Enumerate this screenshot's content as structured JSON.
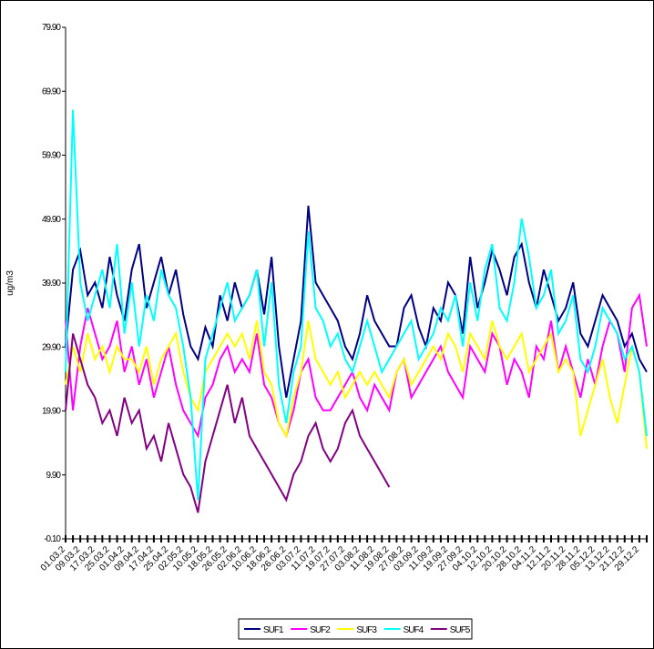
{
  "chart_data": {
    "type": "line",
    "y_label": "ug/m3",
    "categories": [
      "01.03.2",
      null,
      "09.03.2",
      null,
      "17.03.2",
      null,
      "25.03.2",
      null,
      "01.04.2",
      null,
      "09.04.2",
      null,
      "17.04.2",
      null,
      "25.04.2",
      null,
      "02.05.2",
      null,
      "10.05.2",
      null,
      "18.05.2",
      null,
      "26.05.2",
      null,
      "02.06.2",
      null,
      "10.06.2",
      null,
      "18.06.2",
      null,
      "26.06.2",
      null,
      "03.07.2",
      null,
      "11.07.2",
      null,
      "19.07.2",
      null,
      "27.07.2",
      null,
      "03.08.2",
      null,
      "11.08.2",
      null,
      "19.08.2",
      null,
      "27.08.2",
      null,
      "03.09.2",
      null,
      "11.09.2",
      null,
      "19.09.2",
      null,
      "27.09.2",
      null,
      "04.10.2",
      null,
      "12.10.2",
      null,
      "20.10.2",
      null,
      "28.10.2",
      null,
      "04.11.2",
      null,
      "12.11.2",
      null,
      "20.11.2",
      null,
      "28.11.2",
      null,
      "05.12.2",
      null,
      "13.12.2",
      null,
      "21.12.2",
      null,
      "29.12.2",
      null
    ],
    "series": [
      {
        "name": "SUF1",
        "color": "#000080",
        "values": [
          30,
          42,
          45,
          38,
          40,
          36,
          44,
          38,
          34,
          42,
          46,
          36,
          40,
          44,
          38,
          42,
          35,
          30,
          28,
          33,
          30,
          38,
          34,
          40,
          36,
          38,
          42,
          35,
          44,
          30,
          22,
          28,
          34,
          52,
          40,
          38,
          36,
          34,
          30,
          28,
          32,
          38,
          34,
          32,
          30,
          30,
          36,
          38,
          33,
          30,
          36,
          34,
          40,
          38,
          32,
          44,
          36,
          40,
          45,
          42,
          38,
          44,
          46,
          40,
          36,
          42,
          38,
          34,
          36,
          40,
          32,
          30,
          34,
          38,
          36,
          34,
          30,
          32,
          28,
          26
        ]
      },
      {
        "name": "SUF2",
        "color": "#ff00ff",
        "values": [
          34,
          20,
          30,
          36,
          32,
          28,
          30,
          34,
          26,
          30,
          24,
          28,
          22,
          26,
          30,
          24,
          20,
          18,
          16,
          22,
          24,
          28,
          30,
          26,
          28,
          26,
          32,
          24,
          22,
          18,
          16,
          20,
          26,
          28,
          22,
          20,
          20,
          22,
          24,
          26,
          22,
          20,
          24,
          22,
          20,
          26,
          28,
          22,
          24,
          26,
          28,
          30,
          26,
          24,
          22,
          30,
          28,
          26,
          32,
          30,
          24,
          28,
          26,
          22,
          30,
          28,
          34,
          26,
          30,
          26,
          22,
          28,
          24,
          30,
          34,
          32,
          26,
          36,
          38,
          30
        ]
      },
      {
        "name": "SUF3",
        "color": "#ffff00",
        "values": [
          24,
          30,
          26,
          32,
          28,
          30,
          26,
          30,
          28,
          28,
          26,
          30,
          24,
          28,
          30,
          32,
          26,
          22,
          20,
          26,
          28,
          30,
          32,
          30,
          32,
          28,
          34,
          26,
          24,
          18,
          16,
          22,
          26,
          34,
          28,
          26,
          24,
          26,
          22,
          24,
          26,
          24,
          26,
          24,
          22,
          26,
          28,
          24,
          26,
          28,
          30,
          28,
          32,
          30,
          26,
          32,
          30,
          28,
          34,
          30,
          28,
          30,
          32,
          26,
          28,
          30,
          32,
          26,
          28,
          26,
          16,
          20,
          24,
          28,
          22,
          18,
          24,
          30,
          26,
          14
        ]
      },
      {
        "name": "SUF4",
        "color": "#00ffff",
        "values": [
          26,
          67,
          40,
          34,
          38,
          42,
          36,
          46,
          32,
          40,
          30,
          38,
          34,
          42,
          38,
          36,
          30,
          22,
          6,
          28,
          32,
          36,
          40,
          34,
          36,
          38,
          42,
          30,
          40,
          24,
          18,
          26,
          30,
          48,
          36,
          34,
          30,
          32,
          28,
          26,
          30,
          34,
          30,
          26,
          28,
          30,
          32,
          34,
          28,
          30,
          32,
          36,
          34,
          38,
          30,
          40,
          34,
          42,
          46,
          36,
          34,
          40,
          50,
          44,
          36,
          38,
          42,
          32,
          34,
          38,
          28,
          26,
          30,
          36,
          34,
          32,
          28,
          30,
          26,
          16
        ]
      },
      {
        "name": "SUF5",
        "color": "#800080",
        "values": [
          20,
          32,
          28,
          24,
          22,
          18,
          20,
          16,
          22,
          18,
          20,
          14,
          16,
          12,
          18,
          14,
          10,
          8,
          4,
          12,
          16,
          20,
          24,
          18,
          22,
          16,
          14,
          12,
          10,
          8,
          6,
          10,
          12,
          16,
          18,
          14,
          12,
          14,
          18,
          20,
          16,
          14,
          12,
          10,
          8,
          null,
          null,
          null,
          null,
          null,
          null,
          null,
          null,
          null,
          null,
          null,
          null,
          null,
          null,
          null,
          null,
          null,
          null,
          null,
          null,
          null,
          null,
          null,
          null,
          null,
          null,
          null,
          null,
          null,
          null,
          null,
          null,
          null,
          null,
          null
        ]
      }
    ],
    "ylim": [
      -0.1,
      79.9
    ],
    "yticks": [
      {
        "value": -0.1,
        "label": "-0.10"
      },
      {
        "value": 9.9,
        "label": "9.90"
      },
      {
        "value": 19.9,
        "label": "19.90"
      },
      {
        "value": 29.9,
        "label": "29.90"
      },
      {
        "value": 39.9,
        "label": "39.90"
      },
      {
        "value": 49.9,
        "label": "49.90"
      },
      {
        "value": 59.9,
        "label": "59.90"
      },
      {
        "value": 69.9,
        "label": "69.90"
      },
      {
        "value": 79.9,
        "label": "79.90"
      }
    ],
    "grid": false
  }
}
